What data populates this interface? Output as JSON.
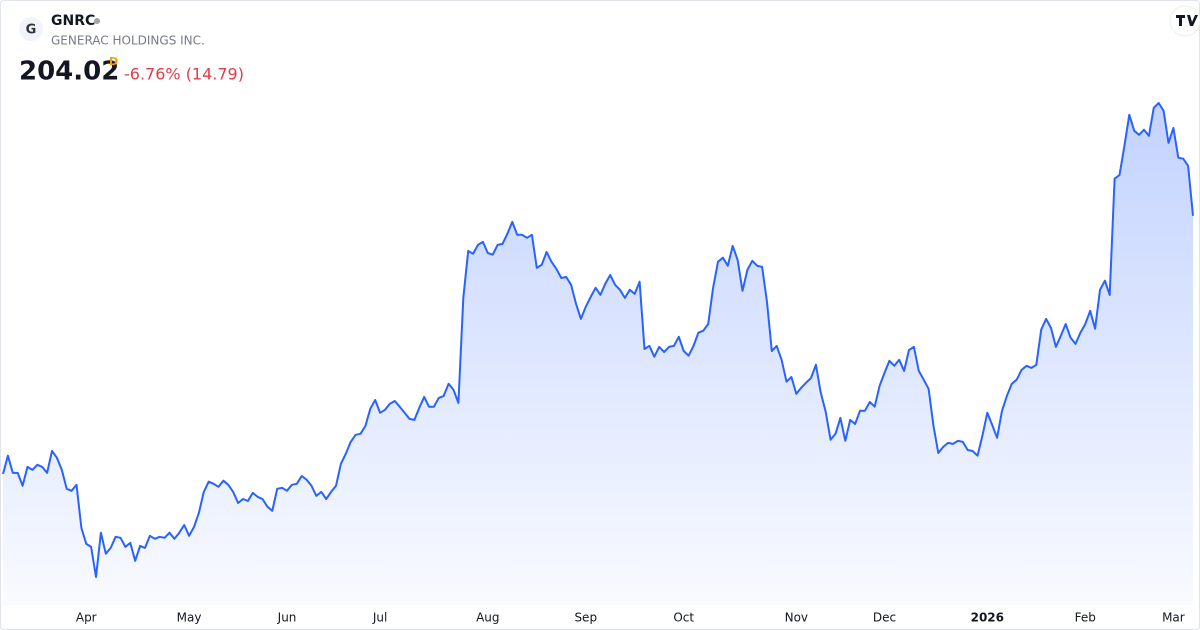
{
  "header": {
    "symbol": "GNRC",
    "name": "GENERAC HOLDINGS INC.",
    "price": 204.02,
    "price_flag": "D",
    "change": "-6.76% (14.79)"
  },
  "chart_data": {
    "type": "area",
    "color": "#2962ff",
    "categories": [
      null,
      null,
      null,
      null,
      null,
      null,
      null,
      null,
      null,
      null,
      null,
      null,
      null,
      null,
      null,
      null,
      null,
      "Apr",
      null,
      null,
      null,
      null,
      null,
      null,
      null,
      null,
      null,
      null,
      null,
      null,
      null,
      null,
      null,
      null,
      null,
      null,
      null,
      null,
      "May",
      null,
      null,
      null,
      null,
      null,
      null,
      null,
      null,
      null,
      null,
      null,
      null,
      null,
      null,
      null,
      null,
      null,
      null,
      null,
      "Jun",
      null,
      null,
      null,
      null,
      null,
      null,
      null,
      null,
      null,
      null,
      null,
      null,
      null,
      null,
      null,
      null,
      null,
      null,
      "Jul",
      null,
      null,
      null,
      null,
      null,
      null,
      null,
      null,
      null,
      null,
      null,
      null,
      null,
      null,
      null,
      null,
      null,
      null,
      null,
      null,
      null,
      "Aug",
      null,
      null,
      null,
      null,
      null,
      null,
      null,
      null,
      null,
      null,
      null,
      null,
      null,
      null,
      null,
      null,
      null,
      null,
      null,
      "Sep",
      null,
      null,
      null,
      null,
      null,
      null,
      null,
      null,
      null,
      null,
      null,
      null,
      null,
      null,
      null,
      null,
      null,
      null,
      null,
      "Oct",
      null,
      null,
      null,
      null,
      null,
      null,
      null,
      null,
      null,
      null,
      null,
      null,
      null,
      null,
      null,
      null,
      null,
      null,
      null,
      null,
      null,
      null,
      "Nov",
      null,
      null,
      null,
      null,
      null,
      null,
      null,
      null,
      null,
      null,
      null,
      null,
      null,
      null,
      null,
      null,
      null,
      "Dec",
      null,
      null,
      null,
      null,
      null,
      null,
      null,
      null,
      null,
      null,
      null,
      null,
      null,
      null,
      null,
      null,
      null,
      null,
      null,
      null,
      "2026",
      null,
      null,
      null,
      null,
      null,
      null,
      null,
      null,
      null,
      null,
      null,
      null,
      null,
      null,
      null,
      null,
      null,
      null,
      null,
      "Feb",
      null,
      null,
      null,
      null,
      null,
      null,
      null,
      null,
      null,
      null,
      null,
      null,
      null,
      null,
      null,
      null,
      null,
      "Mar",
      null,
      null,
      null,
      null
    ],
    "values": [
      127.6,
      133.0,
      127.9,
      127.9,
      124.1,
      129.7,
      128.8,
      130.3,
      129.7,
      127.9,
      134.4,
      132.4,
      128.8,
      123.2,
      122.6,
      124.4,
      111.6,
      106.9,
      106.0,
      97.1,
      110.2,
      104.0,
      105.7,
      109.0,
      108.7,
      106.0,
      107.2,
      101.9,
      106.3,
      105.7,
      109.3,
      108.4,
      109.0,
      108.7,
      110.2,
      108.4,
      110.2,
      112.5,
      109.3,
      111.9,
      116.1,
      122.3,
      125.3,
      124.7,
      123.8,
      125.6,
      124.4,
      122.3,
      119.0,
      120.2,
      119.6,
      122.0,
      120.8,
      120.2,
      117.9,
      116.7,
      123.2,
      123.5,
      122.6,
      124.4,
      124.7,
      127.0,
      125.9,
      124.1,
      121.1,
      122.3,
      120.2,
      122.3,
      124.1,
      130.6,
      133.6,
      137.1,
      139.2,
      139.5,
      141.8,
      146.9,
      149.5,
      145.7,
      146.6,
      148.4,
      149.2,
      147.5,
      145.7,
      143.9,
      143.6,
      147.2,
      150.4,
      147.5,
      147.5,
      150.1,
      150.7,
      154.3,
      152.5,
      148.6,
      179.7,
      193.6,
      192.8,
      195.4,
      196.3,
      193.0,
      192.5,
      195.4,
      195.7,
      198.7,
      202.2,
      198.4,
      198.4,
      197.5,
      198.4,
      188.6,
      189.5,
      193.3,
      190.4,
      188.3,
      185.6,
      185.9,
      183.6,
      178.0,
      173.5,
      177.1,
      180.0,
      182.7,
      180.6,
      183.9,
      186.5,
      183.6,
      182.1,
      179.7,
      182.1,
      180.9,
      184.5,
      164.6,
      165.5,
      162.3,
      165.2,
      163.7,
      165.2,
      165.5,
      168.2,
      164.0,
      162.6,
      165.5,
      169.4,
      170.0,
      172.0,
      182.7,
      190.4,
      191.6,
      189.2,
      195.1,
      191.0,
      181.8,
      188.0,
      190.7,
      189.2,
      188.9,
      178.5,
      164.0,
      165.5,
      161.4,
      154.9,
      156.3,
      151.3,
      153.1,
      154.6,
      156.0,
      159.9,
      151.6,
      146.0,
      137.7,
      139.5,
      144.2,
      137.4,
      143.6,
      142.4,
      146.3,
      146.3,
      148.9,
      147.5,
      153.7,
      157.5,
      161.1,
      159.6,
      161.4,
      158.1,
      164.3,
      165.2,
      158.1,
      155.5,
      152.8,
      141.8,
      133.8,
      135.6,
      136.8,
      136.5,
      137.4,
      137.1,
      134.7,
      134.4,
      133.0,
      138.9,
      145.7,
      142.1,
      138.3,
      146.3,
      150.7,
      154.3,
      155.5,
      158.4,
      159.6,
      159.0,
      159.9,
      170.3,
      173.5,
      170.8,
      165.2,
      168.5,
      172.0,
      167.9,
      166.1,
      169.4,
      172.0,
      175.9,
      170.6,
      182.1,
      184.8,
      180.6,
      215.0,
      216.1,
      224.7,
      233.9,
      229.2,
      228.0,
      229.5,
      227.7,
      236.0,
      237.4,
      235.1,
      225.6,
      230.0,
      221.2,
      220.9,
      218.81,
      204.02
    ]
  }
}
